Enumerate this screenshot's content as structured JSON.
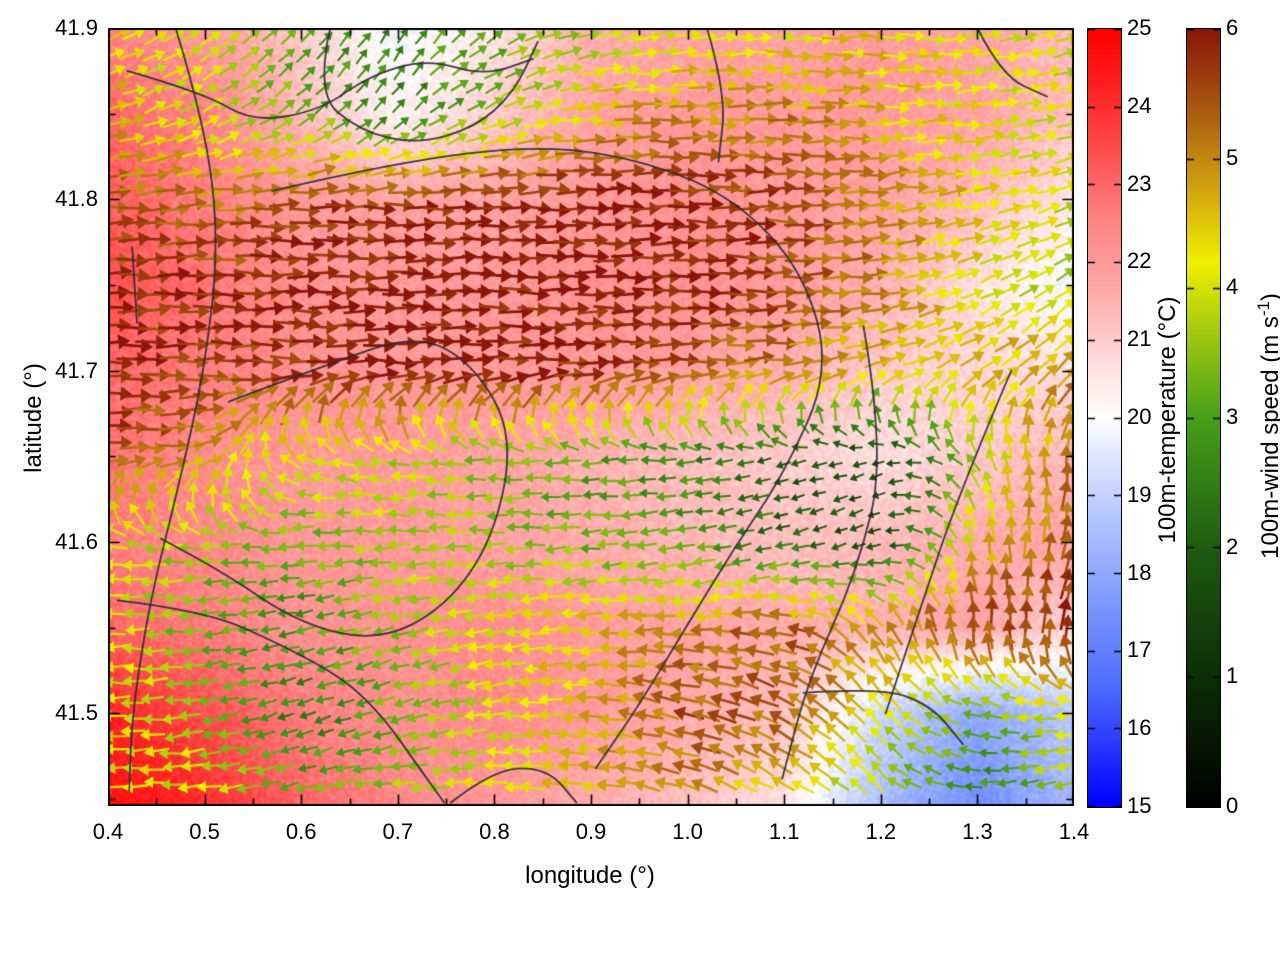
{
  "chart_data": {
    "type": "heatmap",
    "title": "",
    "xlabel": "longitude (°)",
    "ylabel": "latitude (°)",
    "x_range": [
      0.4,
      1.4
    ],
    "y_range": [
      41.446,
      41.9
    ],
    "x_tick_labels": [
      "0.4",
      "0.5",
      "0.6",
      "0.7",
      "0.8",
      "0.9",
      "1.0",
      "1.1",
      "1.2",
      "1.3",
      "1.4"
    ],
    "y_tick_labels": [
      "41.5",
      "41.6",
      "41.7",
      "41.8",
      "41.9"
    ],
    "x_minor_ticks": [
      0.45,
      0.55,
      0.65,
      0.75,
      0.85,
      0.95,
      1.05,
      1.15,
      1.25,
      1.35
    ],
    "y_minor_ticks": [
      41.45,
      41.55,
      41.65,
      41.75,
      41.85
    ],
    "legend": "none",
    "grid": false,
    "colors": {
      "background": "#ffffff",
      "border": "#000000",
      "contour": "#2b2b33"
    },
    "temperature": {
      "label": "100m-temperature (°C)",
      "range": [
        15,
        25
      ],
      "tick_labels": [
        "15",
        "16",
        "17",
        "18",
        "19",
        "20",
        "21",
        "22",
        "23",
        "24",
        "25"
      ],
      "colormap_stops": [
        [
          15,
          "#0000ff"
        ],
        [
          16.5,
          "#4a6aff"
        ],
        [
          18,
          "#8fa8ff"
        ],
        [
          19.5,
          "#dfe6ff"
        ],
        [
          20,
          "#ffffff"
        ],
        [
          20.6,
          "#ffe2e2"
        ],
        [
          21.5,
          "#ffb0b0"
        ],
        [
          22.5,
          "#ff8585"
        ],
        [
          23.5,
          "#ff4a4a"
        ],
        [
          24.3,
          "#ff1e1e"
        ],
        [
          25,
          "#ff0000"
        ]
      ],
      "grid_lon": [
        0.4,
        0.5,
        0.6,
        0.7,
        0.8,
        0.9,
        1.0,
        1.1,
        1.2,
        1.3,
        1.4
      ],
      "grid_lat": [
        41.9,
        41.85,
        41.8,
        41.75,
        41.7,
        41.65,
        41.6,
        41.55,
        41.5,
        41.45
      ],
      "values": [
        [
          22.5,
          22.0,
          21.0,
          19.8,
          20.5,
          21.5,
          21.8,
          21.8,
          22.0,
          21.8,
          21.3
        ],
        [
          23.0,
          22.5,
          21.3,
          20.2,
          21.0,
          21.8,
          22.0,
          22.0,
          22.0,
          21.8,
          21.2
        ],
        [
          23.2,
          22.6,
          22.0,
          21.8,
          21.8,
          22.0,
          22.2,
          22.0,
          21.8,
          21.3,
          20.5
        ],
        [
          23.4,
          22.8,
          22.2,
          22.0,
          22.0,
          22.2,
          22.2,
          22.0,
          21.5,
          20.6,
          19.8
        ],
        [
          23.0,
          22.6,
          22.2,
          22.0,
          22.0,
          22.0,
          21.8,
          21.5,
          21.0,
          20.8,
          20.6
        ],
        [
          22.8,
          22.3,
          22.0,
          22.0,
          21.8,
          21.5,
          21.2,
          21.0,
          20.6,
          21.0,
          21.4
        ],
        [
          22.6,
          22.4,
          22.0,
          22.0,
          21.8,
          21.6,
          21.4,
          21.2,
          21.3,
          21.6,
          21.8
        ],
        [
          23.0,
          22.6,
          22.2,
          22.2,
          22.3,
          22.0,
          21.8,
          21.6,
          21.5,
          21.8,
          20.8
        ],
        [
          24.2,
          23.4,
          22.6,
          22.2,
          22.4,
          22.0,
          21.6,
          21.2,
          19.2,
          18.0,
          18.8
        ],
        [
          24.6,
          24.0,
          23.0,
          22.4,
          22.0,
          21.6,
          21.2,
          20.6,
          18.6,
          17.4,
          18.4
        ]
      ]
    },
    "wind": {
      "label_parts": {
        "pre": "100m-wind speed (m s",
        "sup": "-1",
        "post": ")"
      },
      "range": [
        0,
        6
      ],
      "tick_labels": [
        "0",
        "1",
        "2",
        "3",
        "4",
        "5",
        "6"
      ],
      "colormap_stops": [
        [
          0,
          "#000000"
        ],
        [
          1,
          "#0c2e06"
        ],
        [
          2,
          "#1e5c10"
        ],
        [
          3,
          "#46a018"
        ],
        [
          3.7,
          "#a8cc10"
        ],
        [
          4.2,
          "#f0f000"
        ],
        [
          4.8,
          "#d0a010"
        ],
        [
          5.4,
          "#a85810"
        ],
        [
          6,
          "#8b1508"
        ]
      ],
      "grid_lon": [
        0.4,
        0.5,
        0.6,
        0.7,
        0.8,
        0.9,
        1.0,
        1.1,
        1.2,
        1.3,
        1.4
      ],
      "grid_lat": [
        41.9,
        41.85,
        41.8,
        41.75,
        41.7,
        41.65,
        41.6,
        41.55,
        41.5,
        41.45
      ],
      "speed": [
        [
          4.2,
          3.8,
          3.0,
          2.6,
          3.2,
          3.6,
          4.0,
          4.2,
          4.4,
          4.2,
          4.0
        ],
        [
          4.6,
          4.0,
          3.2,
          2.4,
          3.4,
          4.6,
          5.0,
          5.0,
          4.6,
          4.2,
          4.0
        ],
        [
          5.4,
          5.0,
          5.6,
          5.8,
          6.0,
          6.0,
          5.8,
          5.6,
          5.0,
          4.4,
          4.0
        ],
        [
          5.8,
          5.8,
          6.0,
          6.0,
          6.0,
          6.0,
          6.0,
          5.6,
          5.0,
          4.2,
          3.6
        ],
        [
          6.0,
          5.6,
          5.8,
          6.0,
          6.0,
          5.8,
          5.4,
          5.0,
          4.4,
          4.6,
          5.0
        ],
        [
          5.6,
          4.6,
          4.2,
          3.8,
          3.4,
          3.0,
          2.6,
          2.0,
          1.4,
          3.6,
          5.0
        ],
        [
          4.2,
          3.6,
          3.2,
          3.8,
          3.6,
          3.2,
          3.0,
          2.2,
          1.6,
          4.4,
          5.6
        ],
        [
          4.0,
          3.2,
          2.8,
          3.6,
          4.2,
          4.6,
          5.0,
          5.4,
          5.0,
          5.6,
          5.8
        ],
        [
          4.4,
          3.6,
          2.4,
          3.2,
          4.0,
          4.6,
          5.4,
          5.4,
          4.2,
          3.2,
          4.2
        ],
        [
          4.2,
          4.0,
          3.2,
          3.6,
          4.2,
          4.6,
          5.0,
          4.2,
          3.6,
          2.4,
          3.8
        ]
      ],
      "direction_deg": [
        [
          25,
          35,
          50,
          60,
          35,
          15,
          5,
          0,
          -5,
          5,
          15
        ],
        [
          15,
          25,
          35,
          45,
          25,
          5,
          0,
          0,
          0,
          5,
          10
        ],
        [
          5,
          5,
          0,
          0,
          0,
          0,
          0,
          0,
          5,
          10,
          20
        ],
        [
          0,
          0,
          0,
          0,
          0,
          0,
          0,
          0,
          5,
          20,
          35
        ],
        [
          0,
          0,
          0,
          0,
          0,
          0,
          0,
          5,
          15,
          35,
          50
        ],
        [
          0,
          5,
          160,
          175,
          180,
          180,
          185,
          190,
          200,
          120,
          80
        ],
        [
          175,
          180,
          185,
          180,
          180,
          185,
          190,
          195,
          200,
          100,
          80
        ],
        [
          180,
          185,
          190,
          195,
          190,
          185,
          180,
          170,
          120,
          90,
          75
        ],
        [
          180,
          190,
          200,
          195,
          185,
          175,
          165,
          150,
          130,
          170,
          185
        ],
        [
          180,
          185,
          195,
          185,
          175,
          170,
          160,
          150,
          140,
          185,
          195
        ]
      ]
    },
    "contours_lonlat": [
      [
        [
          0.42,
          41.875
        ],
        [
          0.5,
          41.862
        ],
        [
          0.55,
          41.845
        ],
        [
          0.62,
          41.852
        ],
        [
          0.67,
          41.872
        ],
        [
          0.73,
          41.882
        ],
        [
          0.79,
          41.872
        ],
        [
          0.84,
          41.882
        ]
      ],
      [
        [
          0.63,
          41.9
        ],
        [
          0.615,
          41.862
        ],
        [
          0.66,
          41.84
        ],
        [
          0.72,
          41.832
        ],
        [
          0.78,
          41.842
        ],
        [
          0.82,
          41.862
        ],
        [
          0.845,
          41.892
        ]
      ],
      [
        [
          0.47,
          41.9
        ],
        [
          0.5,
          41.845
        ],
        [
          0.515,
          41.775
        ],
        [
          0.5,
          41.7
        ],
        [
          0.472,
          41.63
        ],
        [
          0.443,
          41.565
        ],
        [
          0.425,
          41.5
        ],
        [
          0.422,
          41.455
        ]
      ],
      [
        [
          0.57,
          41.805
        ],
        [
          0.7,
          41.822
        ],
        [
          0.85,
          41.832
        ],
        [
          0.96,
          41.822
        ],
        [
          1.05,
          41.8
        ],
        [
          1.12,
          41.758
        ],
        [
          1.148,
          41.7
        ],
        [
          1.1,
          41.64
        ],
        [
          1.05,
          41.598
        ],
        [
          1.0,
          41.552
        ],
        [
          0.95,
          41.505
        ],
        [
          0.905,
          41.468
        ]
      ],
      [
        [
          0.525,
          41.682
        ],
        [
          0.62,
          41.702
        ],
        [
          0.72,
          41.722
        ],
        [
          0.78,
          41.703
        ],
        [
          0.82,
          41.662
        ],
        [
          0.8,
          41.603
        ],
        [
          0.75,
          41.562
        ],
        [
          0.68,
          41.542
        ],
        [
          0.6,
          41.552
        ],
        [
          0.52,
          41.582
        ],
        [
          0.455,
          41.602
        ]
      ],
      [
        [
          0.41,
          41.566
        ],
        [
          0.5,
          41.56
        ],
        [
          0.58,
          41.54
        ],
        [
          0.645,
          41.52
        ],
        [
          0.685,
          41.498
        ],
        [
          0.72,
          41.47
        ],
        [
          0.748,
          41.448
        ]
      ],
      [
        [
          0.755,
          41.448
        ],
        [
          0.8,
          41.468
        ],
        [
          0.855,
          41.468
        ],
        [
          0.885,
          41.448
        ]
      ],
      [
        [
          1.02,
          41.9
        ],
        [
          1.04,
          41.862
        ],
        [
          1.032,
          41.822
        ]
      ],
      [
        [
          1.3,
          41.9
        ],
        [
          1.325,
          41.872
        ],
        [
          1.372,
          41.86
        ]
      ],
      [
        [
          1.182,
          41.726
        ],
        [
          1.205,
          41.652
        ],
        [
          1.175,
          41.582
        ],
        [
          1.125,
          41.52
        ],
        [
          1.098,
          41.462
        ]
      ],
      [
        [
          1.335,
          41.7
        ],
        [
          1.282,
          41.63
        ],
        [
          1.24,
          41.56
        ],
        [
          1.205,
          41.5
        ]
      ],
      [
        [
          1.12,
          41.512
        ],
        [
          1.2,
          41.515
        ],
        [
          1.252,
          41.505
        ],
        [
          1.285,
          41.482
        ]
      ],
      [
        [
          0.425,
          41.772
        ],
        [
          0.43,
          41.728
        ]
      ]
    ]
  }
}
